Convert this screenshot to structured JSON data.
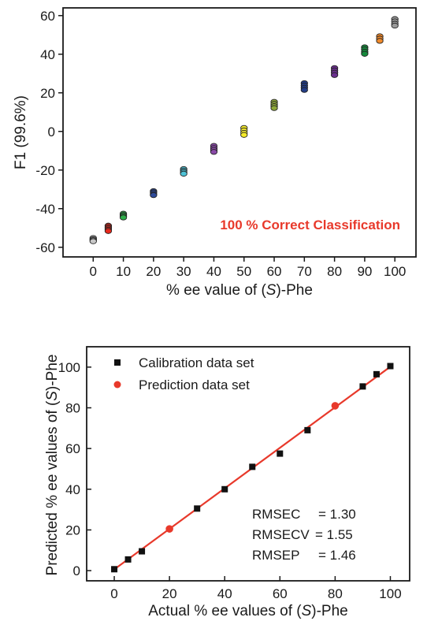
{
  "chart_data": [
    {
      "type": "scatter",
      "xlabel_parts": [
        "% ee value of (",
        "S",
        ")-Phe"
      ],
      "ylabel": "F1 (99.6%)",
      "annotation": "100 % Correct Classification",
      "xlim": [
        -10,
        107
      ],
      "ylim": [
        -65,
        64
      ],
      "xticks": [
        0,
        10,
        20,
        30,
        40,
        50,
        60,
        70,
        80,
        90,
        100
      ],
      "yticks": [
        -60,
        -40,
        -20,
        0,
        20,
        40,
        60
      ],
      "colors": {
        "annotation": "#e8392b",
        "axis": "#1a1a1a"
      },
      "groups": [
        {
          "x": 0,
          "color": "#c8c8c8",
          "values": [
            -55.2,
            -55.9,
            -56.4,
            -56.9
          ]
        },
        {
          "x": 5,
          "color": "#e8291c",
          "values": [
            -48.8,
            -49.5,
            -50.2,
            -50.9,
            -51.6
          ]
        },
        {
          "x": 10,
          "color": "#2eae4a",
          "values": [
            -42.6,
            -43.3,
            -44.0,
            -44.6
          ]
        },
        {
          "x": 20,
          "color": "#2f4b9b",
          "values": [
            -30.9,
            -31.6,
            -32.4,
            -33.0
          ]
        },
        {
          "x": 30,
          "color": "#4fc2d6",
          "values": [
            -19.5,
            -20.3,
            -21.1,
            -21.9
          ]
        },
        {
          "x": 40,
          "color": "#8a4aa8",
          "values": [
            -7.5,
            -8.6,
            -9.6,
            -10.6
          ]
        },
        {
          "x": 50,
          "color": "#f4ea2a",
          "values": [
            1.8,
            0.5,
            -0.7,
            -1.8
          ]
        },
        {
          "x": 60,
          "color": "#8ea83a",
          "values": [
            15.3,
            14.2,
            13.1,
            12.1
          ]
        },
        {
          "x": 70,
          "color": "#233d86",
          "values": [
            25.0,
            23.8,
            22.6,
            21.5
          ]
        },
        {
          "x": 80,
          "color": "#6a2f8e",
          "values": [
            32.8,
            31.6,
            30.4,
            29.2
          ]
        },
        {
          "x": 90,
          "color": "#16893c",
          "values": [
            43.6,
            42.5,
            41.3,
            40.2
          ]
        },
        {
          "x": 95,
          "color": "#f18a2b",
          "values": [
            49.3,
            48.1,
            46.9
          ]
        },
        {
          "x": 100,
          "color": "#9a9a9a",
          "values": [
            58.2,
            57.0,
            55.8,
            54.8
          ]
        }
      ]
    },
    {
      "type": "scatter",
      "xlabel_parts": [
        "Actual % ee values of (",
        "S",
        ")-Phe"
      ],
      "ylabel_parts": [
        "Predicted % ee values of (",
        "S",
        ")-Phe"
      ],
      "xlim": [
        -10,
        107
      ],
      "ylim": [
        -5,
        110
      ],
      "xticks": [
        0,
        20,
        40,
        60,
        80,
        100
      ],
      "yticks": [
        0,
        20,
        40,
        60,
        80,
        100
      ],
      "colors": {
        "calibration": "#111111",
        "prediction": "#e8392b",
        "fit_line": "#e8392b"
      },
      "fit_line": {
        "x": [
          0,
          100
        ],
        "y": [
          0.6,
          100.2
        ]
      },
      "series": [
        {
          "name": "Calibration data set",
          "x": [
            0,
            5,
            10,
            30,
            40,
            50,
            60,
            70,
            90,
            95,
            100
          ],
          "y": [
            0.7,
            5.5,
            9.5,
            30.5,
            40.0,
            51.0,
            57.5,
            69.0,
            90.5,
            96.5,
            100.5
          ]
        },
        {
          "name": "Prediction  data set",
          "x": [
            20,
            80
          ],
          "y": [
            20.5,
            81.0
          ]
        }
      ],
      "stats": [
        {
          "label": "RMSEC",
          "value": "= 1.30"
        },
        {
          "label": "RMSECV",
          "value": "= 1.55"
        },
        {
          "label": "RMSEP",
          "value": "= 1.46"
        }
      ]
    }
  ]
}
